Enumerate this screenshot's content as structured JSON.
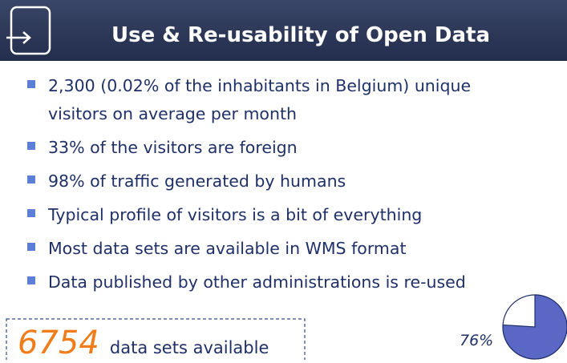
{
  "header": {
    "title": "Use & Re-usability of Open Data"
  },
  "bullets": [
    [
      "2,300 (0.02% of the inhabitants in Belgium) unique",
      "visitors on average per month"
    ],
    [
      "33% of the visitors are foreign"
    ],
    [
      "98% of traffic generated by humans"
    ],
    [
      "Typical profile of visitors is a bit of everything"
    ],
    [
      "Most data sets are available in WMS format"
    ],
    [
      "Data published by other administrations is re-used"
    ]
  ],
  "stat": {
    "number": "6754",
    "text": "data sets available"
  },
  "pie": {
    "value": 76,
    "label": "76%",
    "color": "#5a67c4"
  }
}
